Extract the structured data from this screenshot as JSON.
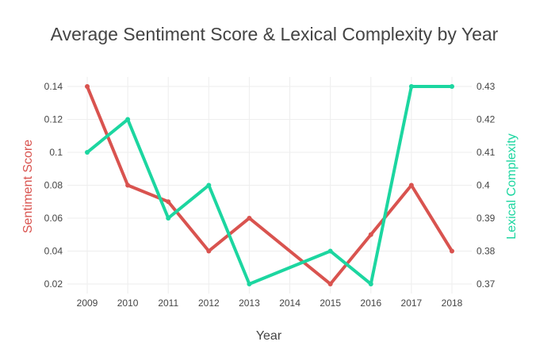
{
  "chart_data": {
    "type": "line",
    "title": "Average Sentiment Score & Lexical Complexity by Year",
    "xlabel": "Year",
    "ylabel": "Sentiment Score",
    "y2label": "Lexical Complexity",
    "x": [
      2009,
      2010,
      2011,
      2012,
      2013,
      2014,
      2015,
      2016,
      2017,
      2018
    ],
    "x_tick_labels": [
      "2009",
      "2010",
      "2011",
      "2012",
      "2013",
      "2014",
      "2015",
      "2016",
      "2017",
      "2018"
    ],
    "y_ticks": [
      0.02,
      0.04,
      0.06,
      0.08,
      0.1,
      0.12,
      0.14
    ],
    "y_tick_labels": [
      "0.02",
      "0.04",
      "0.06",
      "0.08",
      "0.1",
      "0.12",
      "0.14"
    ],
    "y2_ticks": [
      0.37,
      0.38,
      0.39,
      0.4,
      0.41,
      0.42,
      0.43
    ],
    "y2_tick_labels": [
      "0.37",
      "0.38",
      "0.39",
      "0.4",
      "0.41",
      "0.42",
      "0.43"
    ],
    "ylim": [
      0.0142,
      0.1458
    ],
    "y2lim": [
      0.3671,
      0.4329
    ],
    "grid": true,
    "legend": "none",
    "series": [
      {
        "axis": "y",
        "color": "#d9534f",
        "x": [
          2009,
          2010,
          2011,
          2012,
          2013,
          2015,
          2016,
          2017,
          2018
        ],
        "values": [
          0.14,
          0.08,
          0.07,
          0.04,
          0.06,
          0.02,
          0.05,
          0.08,
          0.04
        ]
      },
      {
        "axis": "y2",
        "color": "#1cd6a0",
        "x": [
          2009,
          2010,
          2011,
          2012,
          2013,
          2015,
          2016,
          2017,
          2018
        ],
        "values": [
          0.41,
          0.42,
          0.39,
          0.4,
          0.37,
          0.38,
          0.37,
          0.43,
          0.43
        ]
      }
    ]
  }
}
